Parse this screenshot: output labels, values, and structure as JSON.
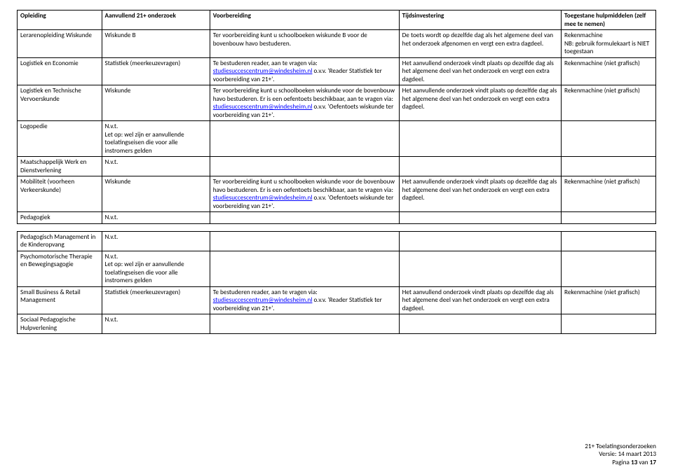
{
  "headers": {
    "opleiding": "Opleiding",
    "onderzoek": "Aanvullend 21+ onderzoek",
    "voorbereiding": "Voorbereiding",
    "tijdsinvestering": "Tijdsinvestering",
    "hulpmiddelen": "Toegestane hulpmiddelen (zelf mee te nemen)"
  },
  "email": "studiesuccescentrum@windesheim.nl",
  "rows": [
    {
      "opleiding": "Lerarenopleiding Wiskunde",
      "onderzoek": "Wiskunde B",
      "voorbereiding_pre": "Ter voorbereiding kunt u schoolboeken wiskunde B voor de bovenbouw havo bestuderen.",
      "voorbereiding_post": "",
      "voorbereiding_has_email": false,
      "tijd": "De toets wordt op dezelfde dag als het algemene deel van het onderzoek afgenomen en vergt een extra dagdeel.",
      "hulp": "Rekenmachine\nNB: gebruik formulekaart is NIET toegestaan"
    },
    {
      "opleiding": "Logistiek en Economie",
      "onderzoek": "Statistiek (meerkeuzevragen)",
      "voorbereiding_pre": "Te bestuderen reader, aan te vragen via: ",
      "voorbereiding_post": " o.v.v. 'Reader Statistiek ter voorbereiding van 21+'.",
      "voorbereiding_has_email": true,
      "tijd": "Het aanvullend onderzoek vindt plaats op dezelfde dag als het algemene deel van het onderzoek en vergt een extra dagdeel.",
      "hulp": "Rekenmachine (niet grafisch)"
    },
    {
      "opleiding": "Logistiek en Technische Vervoerskunde",
      "onderzoek": "Wiskunde",
      "voorbereiding_pre": "Ter voorbereiding kunt u schoolboeken wiskunde voor de bovenbouw havo bestuderen. Er is een oefentoets beschikbaar, aan te vragen via: ",
      "voorbereiding_post": " o.v.v. 'Oefentoets wiskunde ter voorbereiding van 21+'.",
      "voorbereiding_has_email": true,
      "tijd": "Het aanvullende onderzoek vindt plaats op dezelfde dag als het algemene deel van het onderzoek en vergt een extra dagdeel.",
      "hulp": "Rekenmachine (niet grafisch)"
    },
    {
      "opleiding": "Logopedie",
      "onderzoek": "N.v.t.\nLet op: wel zijn er aanvullende toelatingseisen die voor alle instromers gelden",
      "voorbereiding_pre": "",
      "voorbereiding_post": "",
      "voorbereiding_has_email": false,
      "tijd": "",
      "hulp": ""
    },
    {
      "opleiding": "Maatschappelijk Werk en Dienstverlening",
      "onderzoek": "N.v.t.",
      "voorbereiding_pre": "",
      "voorbereiding_post": "",
      "voorbereiding_has_email": false,
      "tijd": "",
      "hulp": ""
    },
    {
      "opleiding": "Mobiliteit (voorheen Verkeerskunde)",
      "onderzoek": "Wiskunde",
      "voorbereiding_pre": "Ter voorbereiding kunt u schoolboeken wiskunde voor de bovenbouw havo bestuderen. Er is een oefentoets beschikbaar, aan te vragen via: ",
      "voorbereiding_post": " o.v.v. 'Oefentoets wiskunde ter voorbereiding van 21+'.",
      "voorbereiding_has_email": true,
      "tijd": "Het aanvullende onderzoek vindt plaats op dezelfde dag als het algemene deel van het onderzoek en vergt een extra dagdeel.",
      "hulp": "Rekenmachine (niet grafisch)"
    },
    {
      "opleiding": "Pedagogiek",
      "onderzoek": "N.v.t.",
      "voorbereiding_pre": "",
      "voorbereiding_post": "",
      "voorbereiding_has_email": false,
      "tijd": "",
      "hulp": ""
    }
  ],
  "rows2": [
    {
      "opleiding": "Pedagogisch Management in de Kinderopvang",
      "onderzoek": "N.v.t.",
      "voorbereiding_pre": "",
      "voorbereiding_post": "",
      "voorbereiding_has_email": false,
      "tijd": "",
      "hulp": ""
    },
    {
      "opleiding": "Psychomotorische Therapie en Bewegingsagogie",
      "onderzoek": "N.v.t.\nLet op: wel zijn er aanvullende toelatingseisen die voor alle instromers gelden",
      "voorbereiding_pre": "",
      "voorbereiding_post": "",
      "voorbereiding_has_email": false,
      "tijd": "",
      "hulp": ""
    },
    {
      "opleiding": "Small Business & Retail Management",
      "onderzoek": "Statistiek (meerkeuzevragen)",
      "voorbereiding_pre": "Te bestuderen reader, aan te vragen via: ",
      "voorbereiding_post": " o.v.v. 'Reader Statistiek ter voorbereiding van 21+'.",
      "voorbereiding_has_email": true,
      "tijd": "Het aanvullend onderzoek vindt plaats op dezelfde dag als het algemene deel van het onderzoek en vergt een extra dagdeel.",
      "hulp": "Rekenmachine (niet grafisch)"
    },
    {
      "opleiding": "Sociaal Pedagogische Hulpverlening",
      "onderzoek": "N.v.t.",
      "voorbereiding_pre": "",
      "voorbereiding_post": "",
      "voorbereiding_has_email": false,
      "tijd": "",
      "hulp": ""
    }
  ],
  "footer": {
    "line1": "21+ Toelatingsonderzoeken",
    "line2": "Versie: 14 maart 2013",
    "line3_prefix": "Pagina ",
    "page_current": "13",
    "line3_mid": " van ",
    "page_total": "17"
  }
}
